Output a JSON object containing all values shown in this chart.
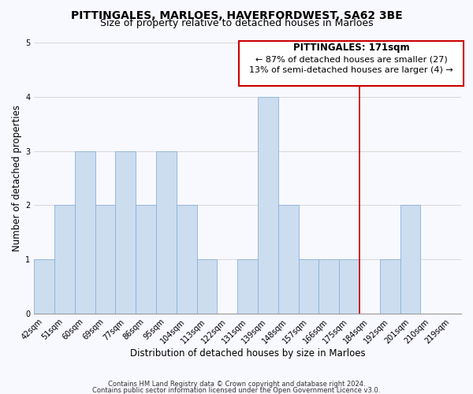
{
  "title": "PITTINGALES, MARLOES, HAVERFORDWEST, SA62 3BE",
  "subtitle": "Size of property relative to detached houses in Marloes",
  "xlabel": "Distribution of detached houses by size in Marloes",
  "ylabel": "Number of detached properties",
  "bar_labels": [
    "42sqm",
    "51sqm",
    "60sqm",
    "69sqm",
    "77sqm",
    "86sqm",
    "95sqm",
    "104sqm",
    "113sqm",
    "122sqm",
    "131sqm",
    "139sqm",
    "148sqm",
    "157sqm",
    "166sqm",
    "175sqm",
    "184sqm",
    "192sqm",
    "201sqm",
    "210sqm",
    "219sqm"
  ],
  "bar_values": [
    1,
    2,
    3,
    2,
    3,
    2,
    3,
    2,
    1,
    0,
    1,
    4,
    2,
    1,
    1,
    1,
    0,
    1,
    2,
    0,
    0
  ],
  "bar_color": "#ccddf0",
  "bar_edgecolor": "#8ab0d8",
  "grid_color": "#d8d8d8",
  "background_color": "#f8f8ff",
  "vline_x_index": 15,
  "vline_color": "#cc0000",
  "annotation_title": "PITTINGALES: 171sqm",
  "annotation_line1": "← 87% of detached houses are smaller (27)",
  "annotation_line2": "13% of semi-detached houses are larger (4) →",
  "annotation_box_color": "#ffffff",
  "annotation_box_edgecolor": "#cc0000",
  "ylim": [
    0,
    5
  ],
  "yticks": [
    0,
    1,
    2,
    3,
    4,
    5
  ],
  "footer_line1": "Contains HM Land Registry data © Crown copyright and database right 2024.",
  "footer_line2": "Contains public sector information licensed under the Open Government Licence v3.0.",
  "title_fontsize": 10,
  "subtitle_fontsize": 9,
  "xlabel_fontsize": 8.5,
  "ylabel_fontsize": 8.5,
  "tick_fontsize": 7,
  "footer_fontsize": 6
}
